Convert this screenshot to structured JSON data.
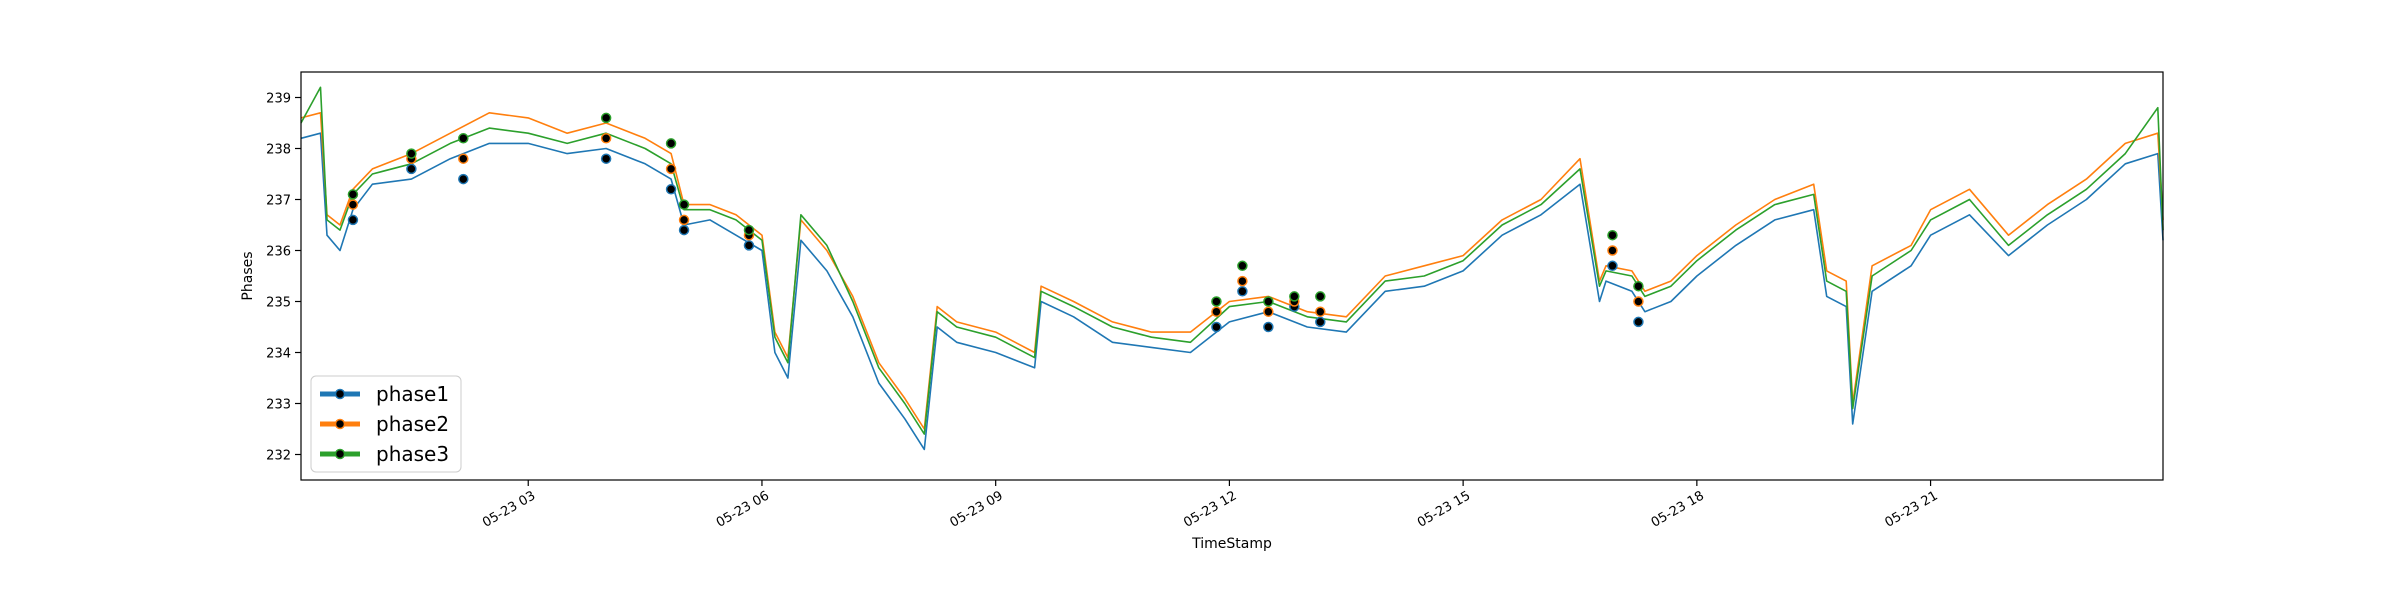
{
  "chart_data": {
    "type": "line",
    "title": "",
    "xlabel": "TimeStamp",
    "ylabel": "Phases",
    "x_range": [
      "05-23 00:05",
      "05-23 23:59"
    ],
    "ylim": [
      231.5,
      239.5
    ],
    "grid": false,
    "legend_position": "lower-left",
    "x_ticks": [
      {
        "label": "05-23 03",
        "value": "05-23 03:00"
      },
      {
        "label": "05-23 06",
        "value": "05-23 06:00"
      },
      {
        "label": "05-23 09",
        "value": "05-23 09:00"
      },
      {
        "label": "05-23 12",
        "value": "05-23 12:00"
      },
      {
        "label": "05-23 15",
        "value": "05-23 15:00"
      },
      {
        "label": "05-23 18",
        "value": "05-23 18:00"
      },
      {
        "label": "05-23 21",
        "value": "05-23 21:00"
      }
    ],
    "y_ticks": [
      232,
      233,
      234,
      235,
      236,
      237,
      238,
      239
    ],
    "series": [
      {
        "name": "phase1",
        "color": "#1f77b4",
        "x": [
          "05-23 00:05",
          "05-23 00:20",
          "05-23 00:25",
          "05-23 00:35",
          "05-23 00:45",
          "05-23 01:00",
          "05-23 01:30",
          "05-23 02:00",
          "05-23 02:30",
          "05-23 03:00",
          "05-23 03:30",
          "05-23 04:00",
          "05-23 04:30",
          "05-23 04:50",
          "05-23 05:00",
          "05-23 05:20",
          "05-23 05:40",
          "05-23 06:00",
          "05-23 06:10",
          "05-23 06:20",
          "05-23 06:30",
          "05-23 06:50",
          "05-23 07:10",
          "05-23 07:30",
          "05-23 07:50",
          "05-23 08:05",
          "05-23 08:15",
          "05-23 08:30",
          "05-23 09:00",
          "05-23 09:30",
          "05-23 09:35",
          "05-23 10:00",
          "05-23 10:30",
          "05-23 11:00",
          "05-23 11:30",
          "05-23 12:00",
          "05-23 12:30",
          "05-23 13:00",
          "05-23 13:30",
          "05-23 14:00",
          "05-23 14:30",
          "05-23 15:00",
          "05-23 15:30",
          "05-23 16:00",
          "05-23 16:30",
          "05-23 16:45",
          "05-23 16:50",
          "05-23 17:10",
          "05-23 17:20",
          "05-23 17:40",
          "05-23 18:00",
          "05-23 18:30",
          "05-23 19:00",
          "05-23 19:30",
          "05-23 19:40",
          "05-23 19:55",
          "05-23 20:00",
          "05-23 20:15",
          "05-23 20:45",
          "05-23 21:00",
          "05-23 21:30",
          "05-23 22:00",
          "05-23 22:30",
          "05-23 23:00",
          "05-23 23:30",
          "05-23 23:55",
          "05-23 23:59"
        ],
        "y": [
          238.2,
          238.3,
          236.3,
          236.0,
          236.8,
          237.3,
          237.4,
          237.8,
          238.1,
          238.1,
          237.9,
          238.0,
          237.7,
          237.4,
          236.5,
          236.6,
          236.3,
          236.0,
          234.0,
          233.5,
          236.2,
          235.6,
          234.7,
          233.4,
          232.7,
          232.1,
          234.5,
          234.2,
          234.0,
          233.7,
          235.0,
          234.7,
          234.2,
          234.1,
          234.0,
          234.6,
          234.8,
          234.5,
          234.4,
          235.2,
          235.3,
          235.6,
          236.3,
          236.7,
          237.3,
          235.0,
          235.4,
          235.2,
          234.8,
          235.0,
          235.5,
          236.1,
          236.6,
          236.8,
          235.1,
          234.9,
          232.6,
          235.2,
          235.7,
          236.3,
          236.7,
          235.9,
          236.5,
          237.0,
          237.7,
          237.9,
          236.2
        ]
      },
      {
        "name": "phase2",
        "color": "#ff7f0e",
        "x": [
          "05-23 00:05",
          "05-23 00:20",
          "05-23 00:25",
          "05-23 00:35",
          "05-23 00:45",
          "05-23 01:00",
          "05-23 01:30",
          "05-23 02:00",
          "05-23 02:30",
          "05-23 03:00",
          "05-23 03:30",
          "05-23 04:00",
          "05-23 04:30",
          "05-23 04:50",
          "05-23 05:00",
          "05-23 05:20",
          "05-23 05:40",
          "05-23 06:00",
          "05-23 06:10",
          "05-23 06:20",
          "05-23 06:30",
          "05-23 06:50",
          "05-23 07:10",
          "05-23 07:30",
          "05-23 07:50",
          "05-23 08:05",
          "05-23 08:15",
          "05-23 08:30",
          "05-23 09:00",
          "05-23 09:30",
          "05-23 09:35",
          "05-23 10:00",
          "05-23 10:30",
          "05-23 11:00",
          "05-23 11:30",
          "05-23 12:00",
          "05-23 12:30",
          "05-23 13:00",
          "05-23 13:30",
          "05-23 14:00",
          "05-23 14:30",
          "05-23 15:00",
          "05-23 15:30",
          "05-23 16:00",
          "05-23 16:30",
          "05-23 16:45",
          "05-23 16:50",
          "05-23 17:10",
          "05-23 17:20",
          "05-23 17:40",
          "05-23 18:00",
          "05-23 18:30",
          "05-23 19:00",
          "05-23 19:30",
          "05-23 19:40",
          "05-23 19:55",
          "05-23 20:00",
          "05-23 20:15",
          "05-23 20:45",
          "05-23 21:00",
          "05-23 21:30",
          "05-23 22:00",
          "05-23 22:30",
          "05-23 23:00",
          "05-23 23:30",
          "05-23 23:55",
          "05-23 23:59"
        ],
        "y": [
          238.6,
          238.7,
          236.7,
          236.5,
          237.2,
          237.6,
          237.9,
          238.3,
          238.7,
          238.6,
          238.3,
          238.5,
          238.2,
          237.9,
          236.9,
          236.9,
          236.7,
          236.3,
          234.4,
          233.9,
          236.6,
          236.0,
          235.1,
          233.8,
          233.1,
          232.5,
          234.9,
          234.6,
          234.4,
          234.0,
          235.3,
          235.0,
          234.6,
          234.4,
          234.4,
          235.0,
          235.1,
          234.8,
          234.7,
          235.5,
          235.7,
          235.9,
          236.6,
          237.0,
          237.8,
          235.4,
          235.7,
          235.6,
          235.2,
          235.4,
          235.9,
          236.5,
          237.0,
          237.3,
          235.6,
          235.4,
          233.0,
          235.7,
          236.1,
          236.8,
          237.2,
          236.3,
          236.9,
          237.4,
          238.1,
          238.3,
          236.6
        ]
      },
      {
        "name": "phase3",
        "color": "#2ca02c",
        "x": [
          "05-23 00:05",
          "05-23 00:20",
          "05-23 00:25",
          "05-23 00:35",
          "05-23 00:45",
          "05-23 01:00",
          "05-23 01:30",
          "05-23 02:00",
          "05-23 02:30",
          "05-23 03:00",
          "05-23 03:30",
          "05-23 04:00",
          "05-23 04:30",
          "05-23 04:50",
          "05-23 05:00",
          "05-23 05:20",
          "05-23 05:40",
          "05-23 06:00",
          "05-23 06:10",
          "05-23 06:20",
          "05-23 06:30",
          "05-23 06:50",
          "05-23 07:10",
          "05-23 07:30",
          "05-23 07:50",
          "05-23 08:05",
          "05-23 08:15",
          "05-23 08:30",
          "05-23 09:00",
          "05-23 09:30",
          "05-23 09:35",
          "05-23 10:00",
          "05-23 10:30",
          "05-23 11:00",
          "05-23 11:30",
          "05-23 12:00",
          "05-23 12:30",
          "05-23 13:00",
          "05-23 13:30",
          "05-23 14:00",
          "05-23 14:30",
          "05-23 15:00",
          "05-23 15:30",
          "05-23 16:00",
          "05-23 16:30",
          "05-23 16:45",
          "05-23 16:50",
          "05-23 17:10",
          "05-23 17:20",
          "05-23 17:40",
          "05-23 18:00",
          "05-23 18:30",
          "05-23 19:00",
          "05-23 19:30",
          "05-23 19:40",
          "05-23 19:55",
          "05-23 20:00",
          "05-23 20:15",
          "05-23 20:45",
          "05-23 21:00",
          "05-23 21:30",
          "05-23 22:00",
          "05-23 22:30",
          "05-23 23:00",
          "05-23 23:30",
          "05-23 23:55",
          "05-23 23:59"
        ],
        "y": [
          238.5,
          239.2,
          236.6,
          236.4,
          237.1,
          237.5,
          237.7,
          238.1,
          238.4,
          238.3,
          238.1,
          238.3,
          238.0,
          237.7,
          236.8,
          236.8,
          236.6,
          236.2,
          234.3,
          233.8,
          236.7,
          236.1,
          235.0,
          233.7,
          233.0,
          232.4,
          234.8,
          234.5,
          234.3,
          233.9,
          235.2,
          234.9,
          234.5,
          234.3,
          234.2,
          234.9,
          235.0,
          234.7,
          234.6,
          235.4,
          235.5,
          235.8,
          236.5,
          236.9,
          237.6,
          235.3,
          235.6,
          235.5,
          235.1,
          235.3,
          235.8,
          236.4,
          236.9,
          237.1,
          235.4,
          235.2,
          232.9,
          235.5,
          236.0,
          236.6,
          237.0,
          236.1,
          236.7,
          237.2,
          237.9,
          238.8,
          236.4
        ]
      }
    ],
    "markers": {
      "color": "#000000",
      "edge_colors": [
        "#1f77b4",
        "#ff7f0e",
        "#2ca02c"
      ],
      "clusters": [
        {
          "x": "05-23 00:45",
          "y": [
            236.6,
            236.9,
            237.1
          ]
        },
        {
          "x": "05-23 01:30",
          "y": [
            237.6,
            237.8,
            237.9
          ]
        },
        {
          "x": "05-23 02:10",
          "y": [
            237.4,
            237.8,
            238.2
          ]
        },
        {
          "x": "05-23 04:00",
          "y": [
            237.8,
            238.2,
            238.6
          ]
        },
        {
          "x": "05-23 04:50",
          "y": [
            237.2,
            237.6,
            238.1
          ]
        },
        {
          "x": "05-23 05:00",
          "y": [
            236.4,
            236.6,
            236.9
          ]
        },
        {
          "x": "05-23 05:50",
          "y": [
            236.1,
            236.3,
            236.4
          ]
        },
        {
          "x": "05-23 11:50",
          "y": [
            234.5,
            234.8,
            235.0
          ]
        },
        {
          "x": "05-23 12:10",
          "y": [
            235.2,
            235.4,
            235.7
          ]
        },
        {
          "x": "05-23 12:30",
          "y": [
            234.5,
            234.8,
            235.0
          ]
        },
        {
          "x": "05-23 12:50",
          "y": [
            234.9,
            235.0,
            235.1
          ]
        },
        {
          "x": "05-23 13:10",
          "y": [
            234.6,
            234.8,
            235.1
          ]
        },
        {
          "x": "05-23 16:55",
          "y": [
            235.7,
            236.0,
            236.3
          ]
        },
        {
          "x": "05-23 17:15",
          "y": [
            234.6,
            235.0,
            235.3
          ]
        }
      ]
    },
    "legend": [
      {
        "label": "phase1",
        "color": "#1f77b4"
      },
      {
        "label": "phase2",
        "color": "#ff7f0e"
      },
      {
        "label": "phase3",
        "color": "#2ca02c"
      }
    ]
  }
}
